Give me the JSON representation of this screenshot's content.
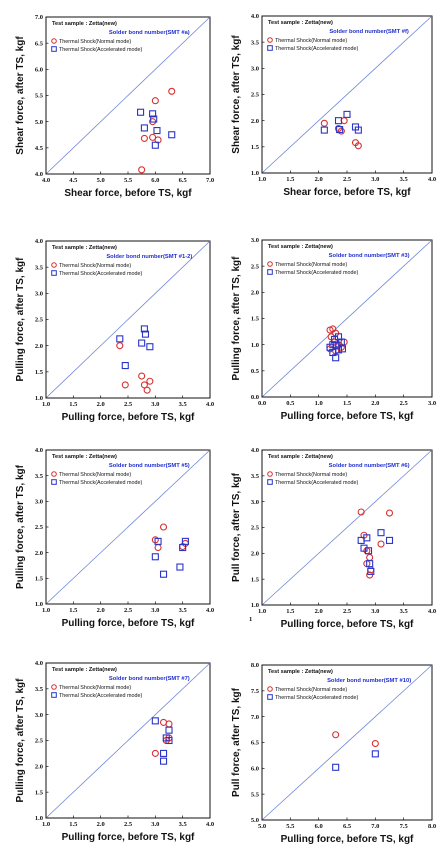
{
  "colors": {
    "normal": "#d83030",
    "accelerated": "#2a35c8",
    "diagonal": "#6f86d6",
    "subtitle": "#1f2fd0"
  },
  "legend_markers": {
    "normal": "circle",
    "accelerated": "square"
  },
  "stray_mark": "1",
  "chart_data": [
    {
      "type": "scatter",
      "sample": "Test sample : Zetta(new)",
      "subtitle": "Solder bond number(SMT #a)",
      "xlabel": "Shear force, before TS, kgf",
      "ylabel": "Shear force, after TS, kgf",
      "xlim": [
        4.0,
        7.0
      ],
      "ylim": [
        4.0,
        7.0
      ],
      "xticks": [
        "4.0",
        "4.5",
        "5.0",
        "5.5",
        "6.0",
        "6.5",
        "7.0"
      ],
      "yticks": [
        "4.0",
        "4.5",
        "5.0",
        "5.5",
        "6.0",
        "6.5",
        "7.0"
      ],
      "diagonal": true,
      "grid": false,
      "legend_position": "top-left",
      "series": [
        {
          "name": "Thermal Shock(Normal mode)",
          "marker": "circle",
          "x": [
            6.3,
            6.0,
            5.95,
            5.8,
            5.95,
            6.05,
            5.75
          ],
          "y": [
            5.58,
            5.4,
            5.0,
            4.68,
            4.7,
            4.65,
            4.08
          ]
        },
        {
          "name": "Thermal Shock(Accelerated mode)",
          "marker": "square",
          "x": [
            5.73,
            5.95,
            5.97,
            5.8,
            6.03,
            6.3,
            6.0
          ],
          "y": [
            5.18,
            5.15,
            5.05,
            4.88,
            4.83,
            4.75,
            4.55
          ]
        }
      ]
    },
    {
      "type": "scatter",
      "sample": "Test sample : Zetta(new)",
      "subtitle": "Solder bond number(SMT #f)",
      "xlabel": "Shear force, before TS, kgf",
      "ylabel": "Shear force, after TS, kgf",
      "xlim": [
        1.0,
        4.0
      ],
      "ylim": [
        1.0,
        4.0
      ],
      "xticks": [
        "1.0",
        "1.5",
        "2.0",
        "2.5",
        "3.0",
        "3.5",
        "4.0"
      ],
      "yticks": [
        "1.0",
        "1.5",
        "2.0",
        "2.5",
        "3.0",
        "3.5",
        "4.0"
      ],
      "diagonal": true,
      "grid": false,
      "legend_position": "top-left",
      "series": [
        {
          "name": "Thermal Shock(Normal mode)",
          "marker": "circle",
          "x": [
            2.1,
            2.35,
            2.4,
            2.45,
            2.65,
            2.7
          ],
          "y": [
            1.95,
            1.85,
            1.8,
            2.0,
            1.58,
            1.52
          ]
        },
        {
          "name": "Thermal Shock(Accelerated mode)",
          "marker": "square",
          "x": [
            2.1,
            2.35,
            2.37,
            2.5,
            2.65,
            2.7
          ],
          "y": [
            1.82,
            2.0,
            1.83,
            2.12,
            1.88,
            1.82
          ]
        }
      ]
    },
    {
      "type": "scatter",
      "sample": "Test sample : Zetta(new)",
      "subtitle": "Solder bond number(SMT #1-2)",
      "xlabel": "Pulling force, before TS, kgf",
      "ylabel": "Pulling force, after TS, kgf",
      "xlim": [
        1.0,
        4.0
      ],
      "ylim": [
        1.0,
        4.0
      ],
      "xticks": [
        "1.0",
        "1.5",
        "2.0",
        "2.5",
        "3.0",
        "3.5",
        "4.0"
      ],
      "yticks": [
        "1.0",
        "1.5",
        "2.0",
        "2.5",
        "3.0",
        "3.5",
        "4.0"
      ],
      "diagonal": true,
      "grid": false,
      "legend_position": "top-left",
      "series": [
        {
          "name": "Thermal Shock(Normal mode)",
          "marker": "circle",
          "x": [
            2.35,
            2.45,
            2.75,
            2.8,
            2.85,
            2.9
          ],
          "y": [
            2.0,
            1.25,
            1.42,
            1.25,
            1.15,
            1.32
          ]
        },
        {
          "name": "Thermal Shock(Accelerated mode)",
          "marker": "square",
          "x": [
            2.35,
            2.45,
            2.75,
            2.8,
            2.82,
            2.9
          ],
          "y": [
            2.13,
            1.62,
            2.05,
            2.32,
            2.22,
            1.98
          ]
        }
      ]
    },
    {
      "type": "scatter",
      "sample": "Test sample : Zetta(new)",
      "subtitle": "Solder bond number(SMT #3)",
      "xlabel": "Pulling force, before TS, kgf",
      "ylabel": "Pulling force, after TS, kgf",
      "xlim": [
        0.0,
        3.0
      ],
      "ylim": [
        0.0,
        3.0
      ],
      "xticks": [
        "0.0",
        "0.5",
        "1.0",
        "1.5",
        "2.0",
        "2.5",
        "3.0"
      ],
      "yticks": [
        "0.0",
        "0.5",
        "1.0",
        "1.5",
        "2.0",
        "2.5",
        "3.0"
      ],
      "diagonal": true,
      "grid": false,
      "legend_position": "top-left",
      "series": [
        {
          "name": "Thermal Shock(Normal mode)",
          "marker": "circle",
          "x": [
            1.2,
            1.25,
            1.22,
            1.3,
            1.28,
            1.35,
            1.4,
            1.2,
            1.3,
            1.45
          ],
          "y": [
            1.28,
            1.3,
            1.15,
            1.22,
            1.05,
            1.0,
            0.95,
            0.92,
            0.88,
            1.05
          ]
        },
        {
          "name": "Thermal Shock(Accelerated mode)",
          "marker": "square",
          "x": [
            1.2,
            1.25,
            1.3,
            1.32,
            1.35,
            1.4,
            1.25,
            1.35,
            1.42,
            1.28
          ],
          "y": [
            0.95,
            0.85,
            0.75,
            0.98,
            1.15,
            1.05,
            1.0,
            0.9,
            0.92,
            1.1
          ]
        }
      ]
    },
    {
      "type": "scatter",
      "sample": "Test sample : Zetta(new)",
      "subtitle": "Solder bond number(SMT #5)",
      "xlabel": "Pulling force, before TS, kgf",
      "ylabel": "Pulling force, after TS, kgf",
      "xlim": [
        1.0,
        4.0
      ],
      "ylim": [
        1.0,
        4.0
      ],
      "xticks": [
        "1.0",
        "1.5",
        "2.0",
        "2.5",
        "3.0",
        "3.5",
        "4.0"
      ],
      "yticks": [
        "1.0",
        "1.5",
        "2.0",
        "2.5",
        "3.0",
        "3.5",
        "4.0"
      ],
      "diagonal": true,
      "grid": false,
      "legend_position": "top-left",
      "series": [
        {
          "name": "Thermal Shock(Normal mode)",
          "marker": "circle",
          "x": [
            3.15,
            3.0,
            3.05,
            3.5,
            3.55
          ],
          "y": [
            2.5,
            2.25,
            2.1,
            2.12,
            2.18
          ]
        },
        {
          "name": "Thermal Shock(Accelerated mode)",
          "marker": "square",
          "x": [
            3.05,
            3.0,
            3.15,
            3.45,
            3.5,
            3.55
          ],
          "y": [
            2.22,
            1.92,
            1.58,
            1.72,
            2.1,
            2.22
          ]
        }
      ]
    },
    {
      "type": "scatter",
      "sample": "Test sample : Zetta(new)",
      "subtitle": "Solder bond number(SMT #6)",
      "xlabel": "Pulling force, before TS, kgf",
      "ylabel": "Pull force, after TS, kgf",
      "xlim": [
        1.0,
        4.0
      ],
      "ylim": [
        1.0,
        4.0
      ],
      "xticks": [
        "1.0",
        "1.5",
        "2.0",
        "2.5",
        "3.0",
        "3.5",
        "4.0"
      ],
      "yticks": [
        "1.0",
        "1.5",
        "2.0",
        "2.5",
        "3.0",
        "3.5",
        "4.0"
      ],
      "diagonal": true,
      "grid": false,
      "legend_position": "top-left",
      "series": [
        {
          "name": "Thermal Shock(Normal mode)",
          "marker": "circle",
          "x": [
            2.75,
            2.8,
            2.85,
            2.9,
            2.92,
            3.1,
            3.25,
            2.85,
            2.9
          ],
          "y": [
            2.8,
            2.35,
            2.05,
            1.92,
            1.68,
            2.18,
            2.78,
            1.8,
            1.58
          ]
        },
        {
          "name": "Thermal Shock(Accelerated mode)",
          "marker": "square",
          "x": [
            2.75,
            2.8,
            2.85,
            2.88,
            2.9,
            3.1,
            3.25,
            2.92
          ],
          "y": [
            2.25,
            2.1,
            2.3,
            2.05,
            1.8,
            2.4,
            2.25,
            1.65
          ]
        }
      ]
    },
    {
      "type": "scatter",
      "sample": "Test sample : Zetta(new)",
      "subtitle": "Solder bond number(SMT #7)",
      "xlabel": "Pulling force, before TS, kgf",
      "ylabel": "Pulling force, after TS, kgf",
      "xlim": [
        1.0,
        4.0
      ],
      "ylim": [
        1.0,
        4.0
      ],
      "xticks": [
        "1.0",
        "1.5",
        "2.0",
        "2.5",
        "3.0",
        "3.5",
        "4.0"
      ],
      "yticks": [
        "1.0",
        "1.5",
        "2.0",
        "2.5",
        "3.0",
        "3.5",
        "4.0"
      ],
      "diagonal": true,
      "grid": false,
      "legend_position": "top-left",
      "series": [
        {
          "name": "Thermal Shock(Normal mode)",
          "marker": "circle",
          "x": [
            3.0,
            3.15,
            3.25,
            3.25,
            3.2
          ],
          "y": [
            2.25,
            2.85,
            2.82,
            2.55,
            2.5
          ]
        },
        {
          "name": "Thermal Shock(Accelerated mode)",
          "marker": "square",
          "x": [
            3.0,
            3.15,
            3.25,
            3.25,
            3.15,
            3.2
          ],
          "y": [
            2.88,
            2.1,
            2.5,
            2.7,
            2.25,
            2.55
          ]
        }
      ]
    },
    {
      "type": "scatter",
      "sample": "Test sample : Zetta(new)",
      "subtitle": "Solder bond number(SMT #10)",
      "xlabel": "Pulling force, before TS, kgf",
      "ylabel": "Pull force, after TS, kgf",
      "xlim": [
        5.0,
        8.0
      ],
      "ylim": [
        5.0,
        8.0
      ],
      "xticks": [
        "5.0",
        "5.5",
        "6.0",
        "6.5",
        "7.0",
        "7.5",
        "8.0"
      ],
      "yticks": [
        "5.0",
        "5.5",
        "6.0",
        "6.5",
        "7.0",
        "7.5",
        "8.0"
      ],
      "diagonal": true,
      "grid": false,
      "legend_position": "top-left",
      "series": [
        {
          "name": "Thermal Shock(Normal mode)",
          "marker": "circle",
          "x": [
            6.3,
            7.0
          ],
          "y": [
            6.65,
            6.48
          ]
        },
        {
          "name": "Thermal Shock(Accelerated mode)",
          "marker": "square",
          "x": [
            6.3,
            7.0
          ],
          "y": [
            6.02,
            6.28
          ]
        }
      ]
    }
  ]
}
